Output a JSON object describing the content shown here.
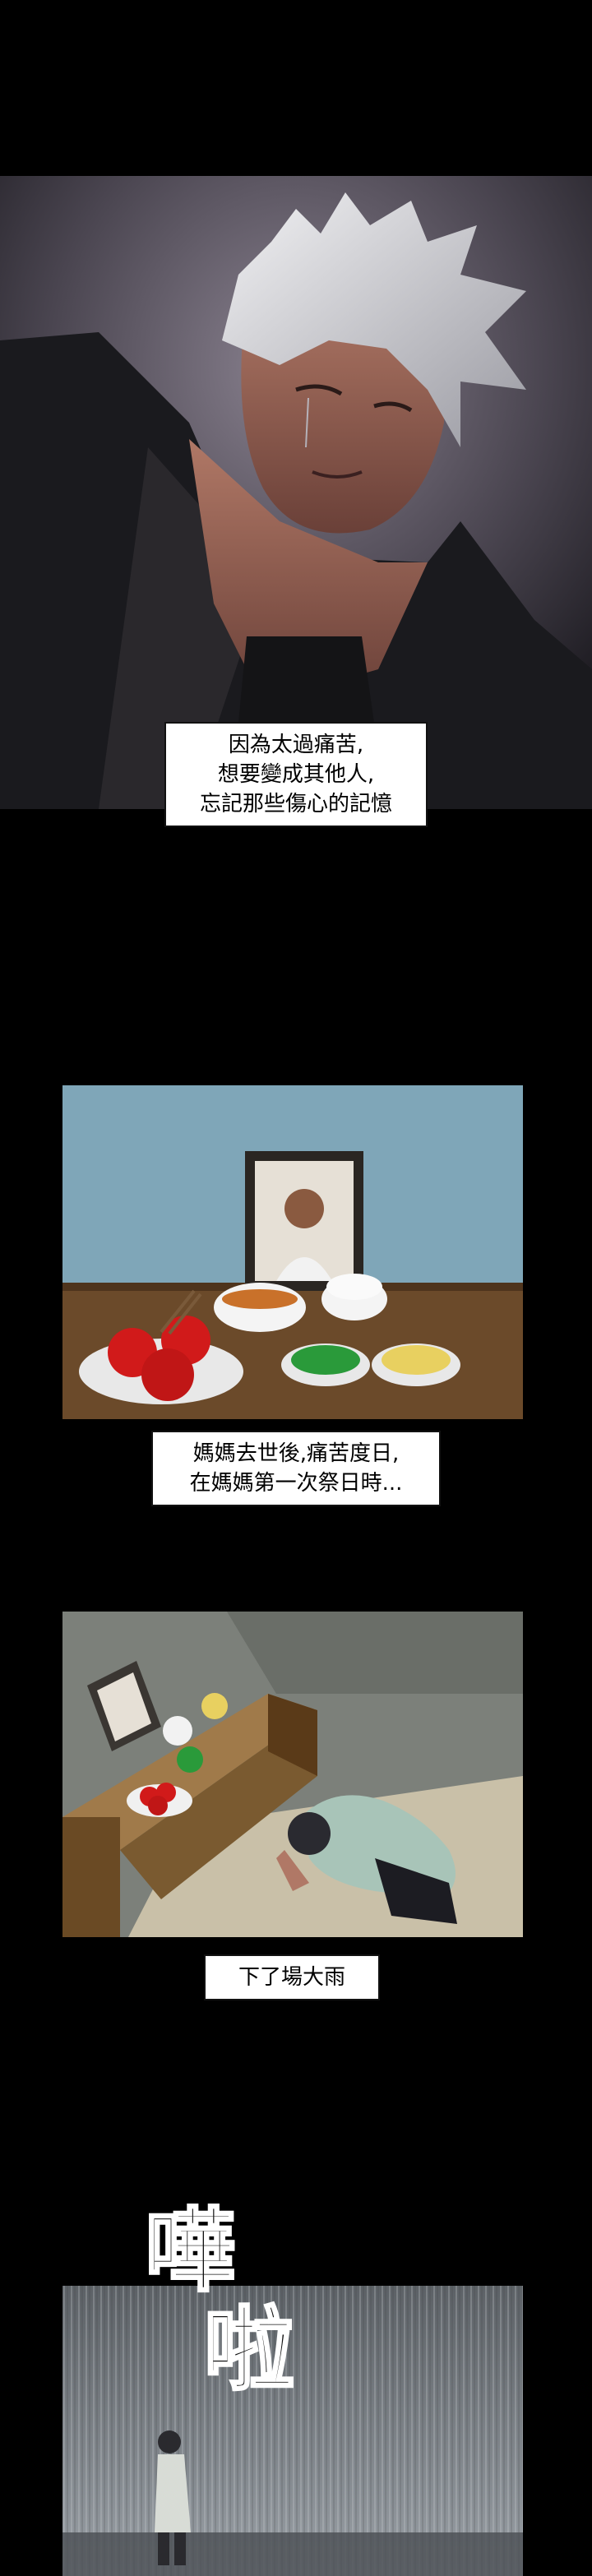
{
  "captions": {
    "panel1": [
      "因為太過痛苦,",
      "想要變成其他人,",
      "忘記那些傷心的記憶"
    ],
    "panel2": [
      "媽媽去世後,痛苦度日,",
      "在媽媽第一次祭日時..."
    ],
    "panel3": [
      "下了場大雨"
    ]
  },
  "sfx": {
    "char1": "嘩",
    "char2": "啦"
  },
  "colors": {
    "background": "#000000",
    "wall_blue": "#7fa6b8",
    "table_wood": "#6b4a2a",
    "rain_grey": "#8a8f94"
  }
}
